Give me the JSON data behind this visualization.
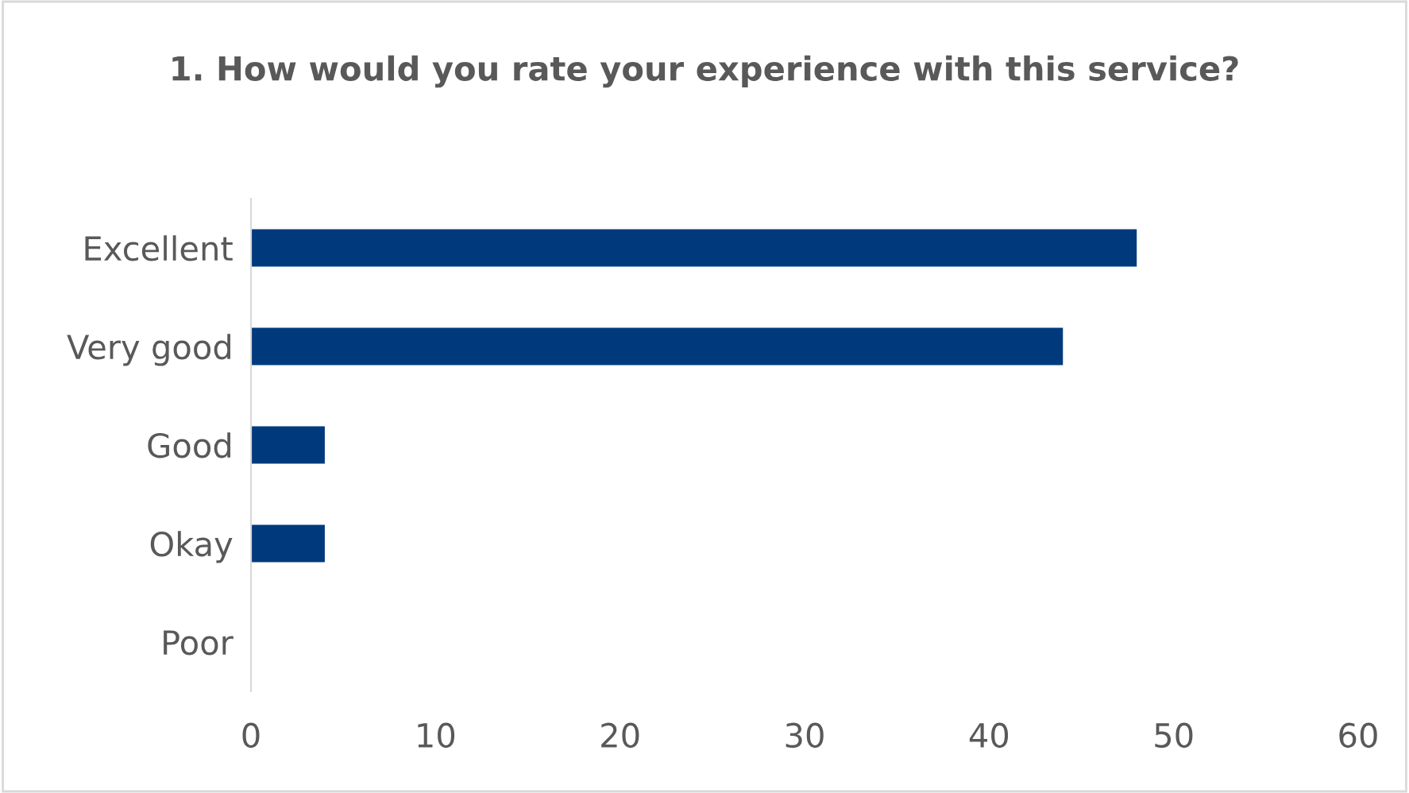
{
  "chart_data": {
    "type": "bar",
    "orientation": "horizontal",
    "title": "1. How would you rate your experience with this service?",
    "categories": [
      "Excellent",
      "Very good",
      "Good",
      "Okay",
      "Poor"
    ],
    "values": [
      48,
      44,
      4,
      4,
      0
    ],
    "color": "#003a7d",
    "xlim": [
      0,
      60
    ],
    "xticks": [
      0,
      10,
      20,
      30,
      40,
      50,
      60
    ],
    "grid": false
  }
}
